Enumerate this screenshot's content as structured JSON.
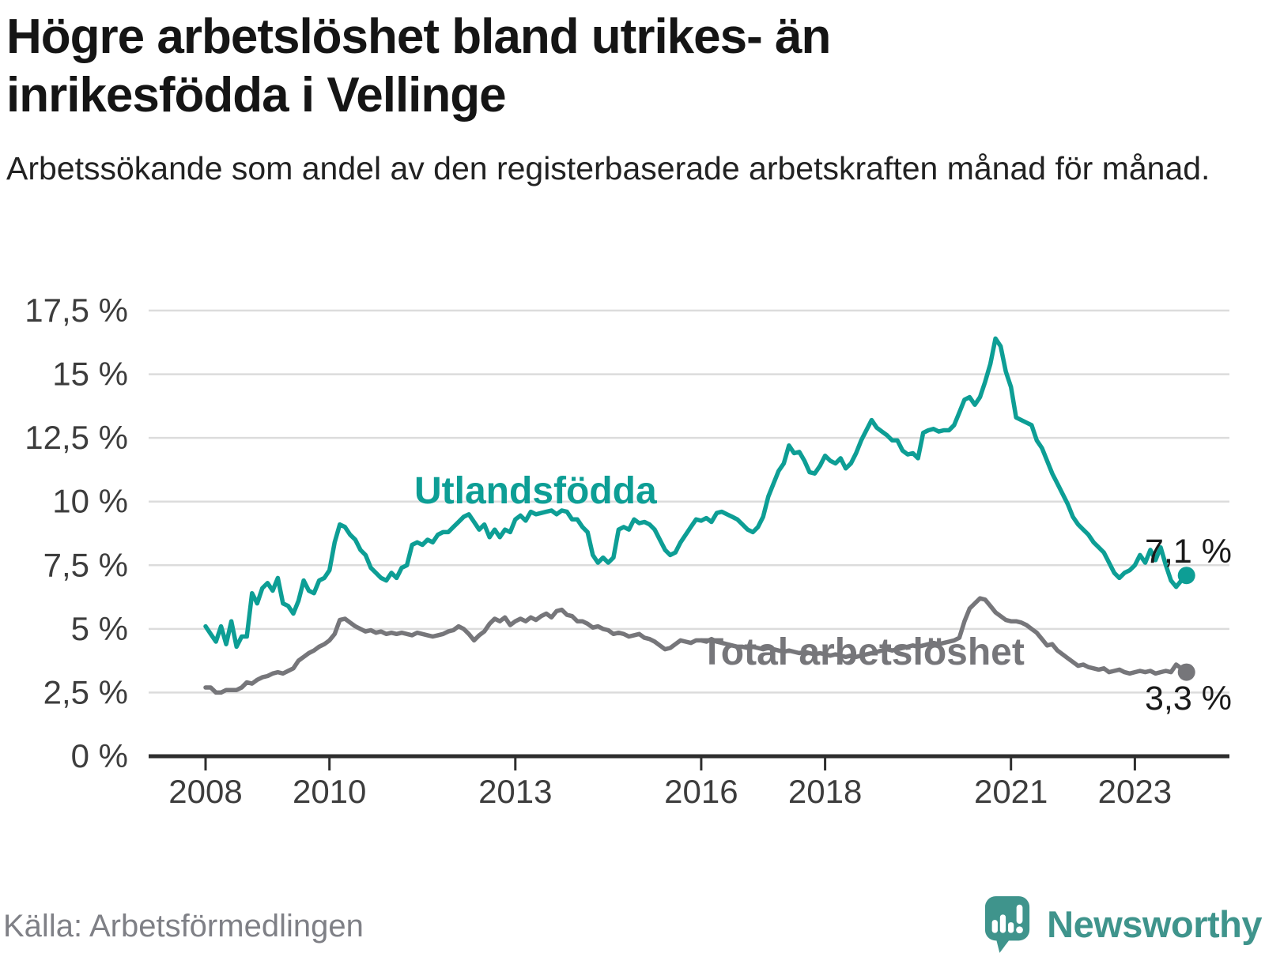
{
  "page": {
    "source": "Källa: Arbetsförmedlingen",
    "brand": "Newsworthy"
  },
  "colors": {
    "teal_line": "#0d9e95",
    "gray_line": "#76767a",
    "logo_teal": "#3f948c",
    "grid": "#dcdcdc",
    "axis": "#2e2e2e",
    "title_text": "#151515",
    "axis_text": "#3d3d3d",
    "source_text": "#7f8086"
  },
  "chart_data": {
    "type": "line",
    "title": "Högre arbetslöshet bland utrikes- än inrikesfödda i Vellinge",
    "subtitle": "Arbetssökande som andel av den registerbaserade arbetskraften månad för månad.",
    "frequency": "monthly",
    "x_start": "2008-01",
    "x_end": "2023-11",
    "ylim": [
      0,
      17.5
    ],
    "grid": true,
    "legend_position": "inline",
    "yticks": [
      {
        "value": 0,
        "label": "0 %"
      },
      {
        "value": 2.5,
        "label": "2,5 %"
      },
      {
        "value": 5,
        "label": "5 %"
      },
      {
        "value": 7.5,
        "label": "7,5 %"
      },
      {
        "value": 10,
        "label": "10 %"
      },
      {
        "value": 12.5,
        "label": "12,5 %"
      },
      {
        "value": 15,
        "label": "15 %"
      },
      {
        "value": 17.5,
        "label": "17,5 %"
      }
    ],
    "xticks": [
      {
        "year": 2008,
        "label": "2008"
      },
      {
        "year": 2010,
        "label": "2010"
      },
      {
        "year": 2013,
        "label": "2013"
      },
      {
        "year": 2016,
        "label": "2016"
      },
      {
        "year": 2018,
        "label": "2018"
      },
      {
        "year": 2021,
        "label": "2021"
      },
      {
        "year": 2023,
        "label": "2023"
      }
    ],
    "series": [
      {
        "name": "Utlandsfödda",
        "color": "#0d9e95",
        "end_label": "7,1 %",
        "last_value": 7.1,
        "values": [
          5.1,
          4.8,
          4.5,
          5.1,
          4.4,
          5.3,
          4.3,
          4.7,
          4.7,
          6.4,
          6.0,
          6.6,
          6.8,
          6.5,
          7.0,
          6.0,
          5.9,
          5.6,
          6.1,
          6.9,
          6.5,
          6.4,
          6.9,
          7.0,
          7.3,
          8.4,
          9.1,
          9.0,
          8.7,
          8.5,
          8.1,
          7.9,
          7.4,
          7.2,
          7.0,
          6.9,
          7.2,
          7.0,
          7.4,
          7.5,
          8.3,
          8.4,
          8.3,
          8.5,
          8.4,
          8.7,
          8.8,
          8.8,
          9.0,
          9.2,
          9.4,
          9.5,
          9.2,
          8.9,
          9.1,
          8.6,
          8.9,
          8.6,
          8.9,
          8.8,
          9.3,
          9.45,
          9.25,
          9.6,
          9.5,
          9.55,
          9.6,
          9.65,
          9.5,
          9.65,
          9.6,
          9.3,
          9.3,
          9.0,
          8.8,
          7.9,
          7.6,
          7.8,
          7.6,
          7.8,
          8.9,
          9.0,
          8.9,
          9.3,
          9.15,
          9.2,
          9.1,
          8.9,
          8.5,
          8.1,
          7.9,
          8.0,
          8.4,
          8.7,
          9.0,
          9.3,
          9.25,
          9.35,
          9.2,
          9.55,
          9.6,
          9.5,
          9.4,
          9.3,
          9.1,
          8.9,
          8.8,
          9.0,
          9.4,
          10.2,
          10.7,
          11.2,
          11.5,
          12.2,
          11.9,
          11.95,
          11.6,
          11.15,
          11.1,
          11.4,
          11.8,
          11.6,
          11.5,
          11.7,
          11.3,
          11.5,
          11.9,
          12.4,
          12.8,
          13.2,
          12.9,
          12.75,
          12.6,
          12.4,
          12.4,
          12.0,
          11.85,
          11.9,
          11.7,
          12.7,
          12.8,
          12.85,
          12.75,
          12.8,
          12.8,
          13.0,
          13.5,
          14.0,
          14.1,
          13.8,
          14.1,
          14.7,
          15.4,
          16.4,
          16.1,
          15.1,
          14.5,
          13.3,
          13.2,
          13.1,
          13.0,
          12.4,
          12.1,
          11.6,
          11.1,
          10.7,
          10.3,
          9.9,
          9.4,
          9.1,
          8.9,
          8.7,
          8.4,
          8.2,
          8.0,
          7.6,
          7.2,
          7.0,
          7.2,
          7.3,
          7.5,
          7.9,
          7.6,
          8.1,
          7.7,
          8.2,
          7.5,
          6.9,
          6.65,
          6.9,
          7.1
        ]
      },
      {
        "name": "Total arbetslöshet",
        "color": "#76767a",
        "end_label": "3,3 %",
        "last_value": 3.3,
        "values": [
          2.7,
          2.7,
          2.5,
          2.5,
          2.6,
          2.6,
          2.6,
          2.7,
          2.9,
          2.85,
          3.0,
          3.1,
          3.15,
          3.25,
          3.3,
          3.25,
          3.35,
          3.45,
          3.75,
          3.9,
          4.05,
          4.15,
          4.3,
          4.4,
          4.55,
          4.8,
          5.35,
          5.4,
          5.25,
          5.1,
          5.0,
          4.9,
          4.95,
          4.85,
          4.9,
          4.8,
          4.85,
          4.8,
          4.85,
          4.8,
          4.75,
          4.85,
          4.8,
          4.75,
          4.7,
          4.75,
          4.8,
          4.9,
          4.95,
          5.1,
          5.0,
          4.8,
          4.55,
          4.75,
          4.9,
          5.2,
          5.4,
          5.3,
          5.45,
          5.15,
          5.3,
          5.4,
          5.3,
          5.45,
          5.35,
          5.5,
          5.6,
          5.45,
          5.7,
          5.75,
          5.55,
          5.5,
          5.3,
          5.3,
          5.2,
          5.05,
          5.1,
          5.0,
          4.95,
          4.8,
          4.85,
          4.8,
          4.7,
          4.75,
          4.8,
          4.65,
          4.6,
          4.5,
          4.35,
          4.2,
          4.25,
          4.4,
          4.55,
          4.5,
          4.45,
          4.55,
          4.55,
          4.5,
          4.6,
          4.5,
          4.45,
          4.4,
          4.35,
          4.3,
          4.3,
          4.25,
          4.3,
          4.25,
          4.2,
          4.25,
          4.2,
          4.15,
          4.1,
          4.15,
          4.1,
          4.05,
          4.1,
          4.05,
          4.0,
          4.05,
          4.0,
          3.95,
          4.0,
          3.95,
          3.9,
          3.95,
          3.9,
          3.95,
          4.0,
          4.05,
          4.1,
          4.15,
          4.2,
          4.15,
          4.2,
          4.25,
          4.3,
          4.35,
          4.3,
          4.35,
          4.4,
          4.45,
          4.4,
          4.45,
          4.5,
          4.55,
          4.65,
          5.3,
          5.8,
          6.0,
          6.2,
          6.15,
          5.9,
          5.65,
          5.5,
          5.35,
          5.3,
          5.3,
          5.25,
          5.15,
          5.0,
          4.85,
          4.6,
          4.35,
          4.4,
          4.15,
          4.0,
          3.85,
          3.7,
          3.55,
          3.6,
          3.5,
          3.45,
          3.4,
          3.45,
          3.3,
          3.35,
          3.4,
          3.3,
          3.25,
          3.3,
          3.35,
          3.3,
          3.35,
          3.25,
          3.3,
          3.35,
          3.3,
          3.6,
          3.45,
          3.3
        ]
      }
    ]
  }
}
